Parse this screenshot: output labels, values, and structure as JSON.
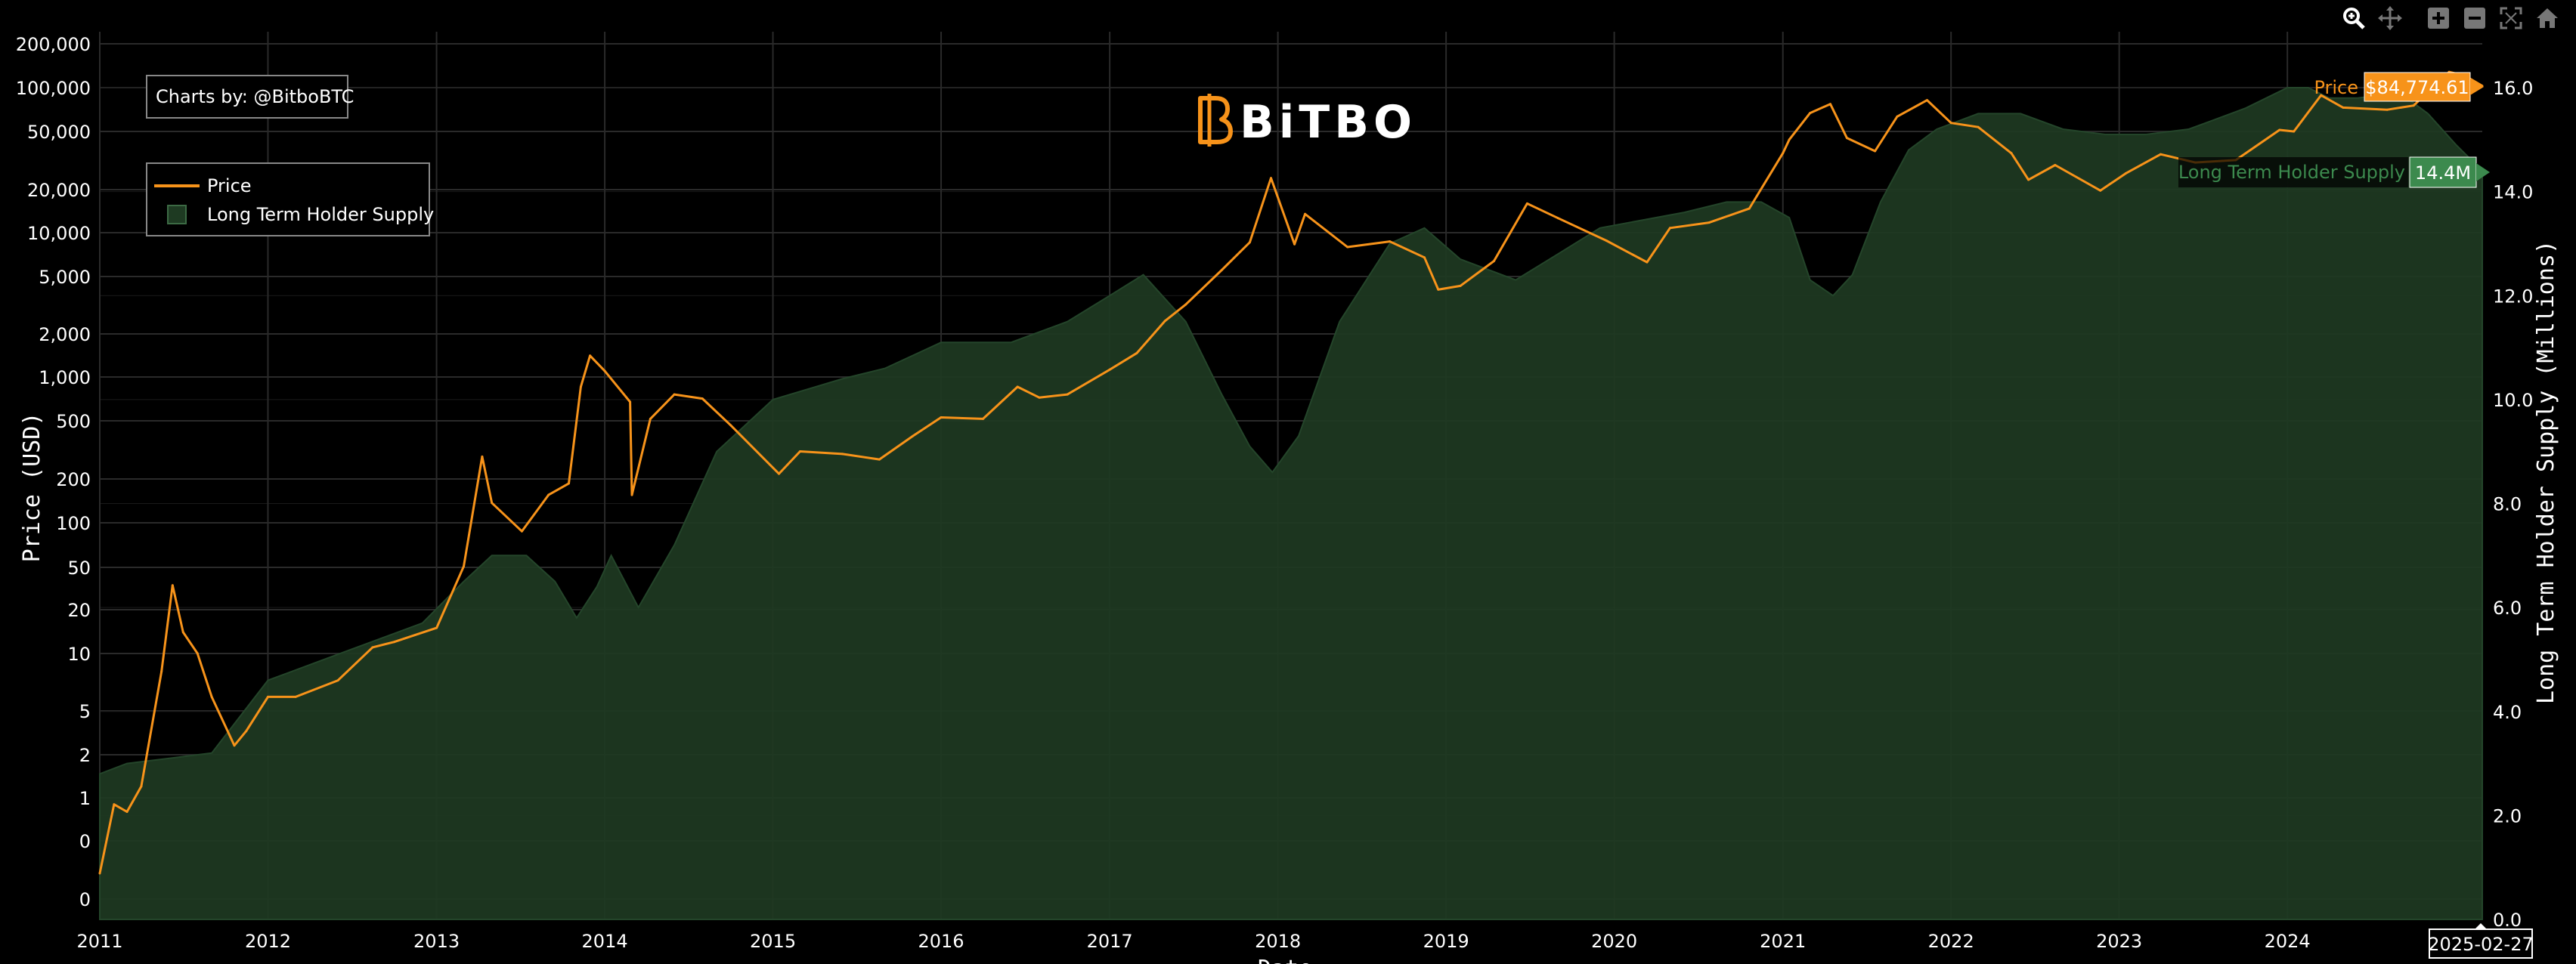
{
  "credit": "Charts by: @BitboBTC",
  "logo": "BiTBO",
  "legend": {
    "price_label": "Price",
    "supply_label": "Long Term Holder Supply"
  },
  "axes": {
    "y_left_title": "Price (USD)",
    "y_right_title": "Long Term Holder Supply (Millions)",
    "x_title": "Date",
    "y_left_ticks": [
      "0",
      "0",
      "1",
      "2",
      "5",
      "10",
      "20",
      "50",
      "100",
      "200",
      "500",
      "1,000",
      "2,000",
      "5,000",
      "10,000",
      "20,000",
      "50,000",
      "100,000",
      "200,000"
    ],
    "y_right_ticks": [
      "0.0",
      "2.0",
      "4.0",
      "6.0",
      "8.0",
      "10.0",
      "12.0",
      "14.0",
      "16.0"
    ],
    "x_ticks": [
      "2011",
      "2012",
      "2013",
      "2014",
      "2015",
      "2016",
      "2017",
      "2018",
      "2019",
      "2020",
      "2021",
      "2022",
      "2023",
      "2024"
    ]
  },
  "hover": {
    "price_label": "Price",
    "price_value": "$84,774.61",
    "supply_label": "Long Term Holder Supply",
    "supply_value": "14.4M",
    "date_value": "2025-02-27"
  },
  "colors": {
    "background": "#000000",
    "price": "#F7931A",
    "supply_fill": "#1E3A22",
    "supply_edge": "#24452A",
    "supply_badge": "#3C8A4E",
    "grid": "#2a2a2a"
  },
  "modebar": [
    "zoom-icon",
    "pan-icon",
    "zoom-in-icon",
    "zoom-out-icon",
    "autoscale-icon",
    "reset-axes-icon"
  ],
  "chart_data": {
    "type": "line",
    "x_scale": "date",
    "y_left_scale": "log",
    "y_left_range": [
      0.1,
      200000
    ],
    "y_right_range": [
      0,
      17
    ],
    "grid": true,
    "legend_position": "top-left",
    "series": [
      {
        "name": "Price",
        "axis": "left",
        "type": "line",
        "x": [
          "2011-01-01",
          "2011-02-01",
          "2011-03-01",
          "2011-04-01",
          "2011-05-15",
          "2011-06-08",
          "2011-07-01",
          "2011-08-01",
          "2011-09-01",
          "2011-10-20",
          "2011-11-15",
          "2012-01-01",
          "2012-03-01",
          "2012-06-01",
          "2012-08-15",
          "2012-10-01",
          "2013-01-01",
          "2013-03-01",
          "2013-04-10",
          "2013-05-01",
          "2013-07-05",
          "2013-09-01",
          "2013-10-15",
          "2013-11-10",
          "2013-11-30",
          "2014-01-01",
          "2014-02-25",
          "2014-03-01",
          "2014-04-10",
          "2014-06-01",
          "2014-08-01",
          "2014-10-01",
          "2015-01-14",
          "2015-03-01",
          "2015-06-01",
          "2015-08-20",
          "2015-11-01",
          "2016-01-01",
          "2016-04-01",
          "2016-06-15",
          "2016-08-01",
          "2016-10-01",
          "2017-01-01",
          "2017-03-01",
          "2017-05-01",
          "2017-06-15",
          "2017-09-01",
          "2017-11-01",
          "2017-12-17",
          "2018-02-06",
          "2018-03-01",
          "2018-06-01",
          "2018-09-01",
          "2018-11-15",
          "2018-12-15",
          "2019-02-01",
          "2019-04-15",
          "2019-06-26",
          "2019-09-01",
          "2019-12-15",
          "2020-03-12",
          "2020-05-01",
          "2020-07-25",
          "2020-10-20",
          "2021-01-01",
          "2021-01-15",
          "2021-03-01",
          "2021-04-14",
          "2021-05-20",
          "2021-07-20",
          "2021-09-06",
          "2021-11-10",
          "2022-01-01",
          "2022-03-01",
          "2022-05-12",
          "2022-06-18",
          "2022-08-15",
          "2022-11-21",
          "2023-01-15",
          "2023-04-01",
          "2023-06-15",
          "2023-09-11",
          "2023-12-15",
          "2024-01-15",
          "2024-03-14",
          "2024-05-01",
          "2024-08-05",
          "2024-10-01",
          "2024-12-17",
          "2025-01-20",
          "2025-02-27"
        ],
        "values": [
          0.3,
          0.9,
          0.8,
          1.2,
          7.5,
          29.6,
          14,
          10,
          5,
          2.3,
          2.9,
          5,
          5,
          6.5,
          11,
          12,
          15,
          40,
          230,
          110,
          70,
          125,
          150,
          700,
          1150,
          900,
          550,
          125,
          420,
          620,
          580,
          380,
          175,
          250,
          240,
          220,
          320,
          430,
          420,
          700,
          590,
          620,
          920,
          1200,
          2000,
          2600,
          4500,
          7000,
          19500,
          6800,
          11000,
          6500,
          7100,
          5500,
          3300,
          3500,
          5200,
          13000,
          10300,
          7200,
          5100,
          8800,
          9600,
          12000,
          29000,
          36000,
          55000,
          63500,
          37000,
          30000,
          52000,
          67500,
          47000,
          44000,
          29000,
          19000,
          24000,
          16000,
          21000,
          28500,
          25000,
          26000,
          42000,
          41000,
          73000,
          60000,
          58000,
          62000,
          106000,
          100000,
          84774.61
        ]
      },
      {
        "name": "Long Term Holder Supply",
        "axis": "right",
        "type": "area",
        "x": [
          "2011-01-01",
          "2011-03-01",
          "2011-06-01",
          "2011-09-01",
          "2012-01-01",
          "2012-06-01",
          "2012-12-01",
          "2013-03-01",
          "2013-05-01",
          "2013-07-15",
          "2013-09-15",
          "2013-11-01",
          "2013-12-15",
          "2014-01-15",
          "2014-03-15",
          "2014-06-01",
          "2014-09-01",
          "2015-01-01",
          "2015-06-01",
          "2015-09-01",
          "2016-01-01",
          "2016-06-01",
          "2016-10-01",
          "2017-01-01",
          "2017-03-15",
          "2017-06-15",
          "2017-09-01",
          "2017-11-01",
          "2017-12-20",
          "2018-02-15",
          "2018-05-15",
          "2018-09-01",
          "2018-11-15",
          "2019-02-01",
          "2019-06-01",
          "2019-09-01",
          "2019-12-01",
          "2020-06-01",
          "2020-09-01",
          "2020-11-15",
          "2021-01-15",
          "2021-03-01",
          "2021-04-20",
          "2021-06-01",
          "2021-08-01",
          "2021-10-01",
          "2021-12-01",
          "2022-03-01",
          "2022-06-01",
          "2022-09-01",
          "2022-12-01",
          "2023-03-01",
          "2023-06-01",
          "2023-10-01",
          "2024-01-01",
          "2024-02-15",
          "2024-04-01",
          "2024-06-01",
          "2024-09-01",
          "2024-11-01",
          "2025-01-01",
          "2025-02-27"
        ],
        "values": [
          2.8,
          3.0,
          3.1,
          3.2,
          4.6,
          5.1,
          5.7,
          6.5,
          7.0,
          7.0,
          6.5,
          5.8,
          6.4,
          7.0,
          6.0,
          7.2,
          9.0,
          10.0,
          10.4,
          10.6,
          11.1,
          11.1,
          11.5,
          12.0,
          12.4,
          11.5,
          10.1,
          9.1,
          8.6,
          9.3,
          11.5,
          13.0,
          13.3,
          12.7,
          12.3,
          12.8,
          13.3,
          13.6,
          13.8,
          13.8,
          13.5,
          12.3,
          12.0,
          12.4,
          13.8,
          14.8,
          15.2,
          15.5,
          15.5,
          15.2,
          15.1,
          15.1,
          15.2,
          15.6,
          16.0,
          16.0,
          15.8,
          15.8,
          15.9,
          15.5,
          14.9,
          14.4
        ]
      }
    ]
  }
}
